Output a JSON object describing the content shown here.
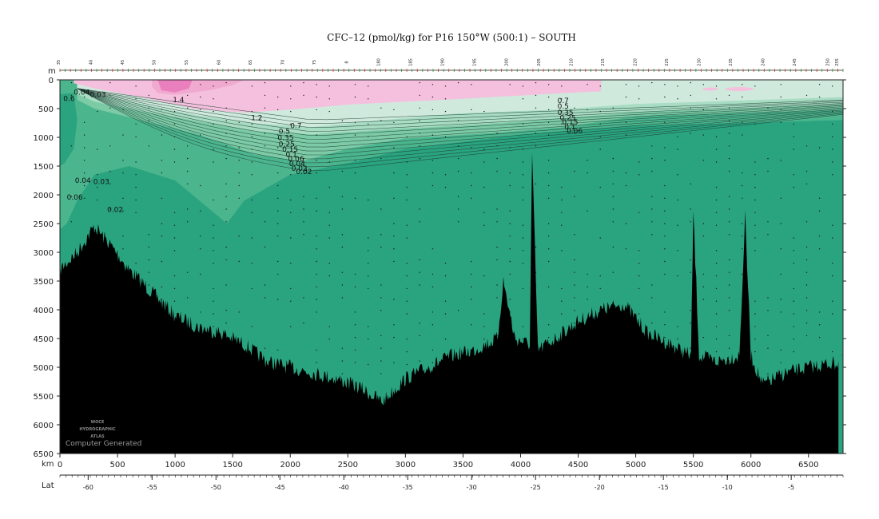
{
  "title": "CFC–12 (pmol/kg) for P16 150°W (500:1) – SOUTH",
  "units_depth": "m",
  "units_distance": "km",
  "units_lat": "Lat",
  "logo": {
    "line1": "WOCE",
    "line2": "HYDROGRAPHIC",
    "line3": "ATLAS"
  },
  "footer_note": "Computer Generated",
  "colors": {
    "deep": "#2aa37f",
    "mid1": "#4bb58e",
    "mid2": "#7ccaa6",
    "pale": "#a8dcc3",
    "palest": "#cfeadd",
    "pink_light": "#f4c0dd",
    "pink": "#f0a9cf",
    "pink_dark": "#ea7fbd",
    "bottom": "#000000",
    "frame": "#222222"
  },
  "chart_data": {
    "type": "section-contour",
    "title": "CFC–12 (pmol/kg) for P16 150°W (500:1) – SOUTH",
    "variable": "CFC-12",
    "units": "pmol/kg",
    "xlabel": "km",
    "ylabel": "m",
    "xlim": [
      0,
      6800
    ],
    "ylim": [
      6500,
      0
    ],
    "x_ticks": [
      0,
      500,
      1000,
      1500,
      2000,
      2500,
      3000,
      3500,
      4000,
      4500,
      5000,
      5500,
      6000,
      6500
    ],
    "y_ticks": [
      0,
      500,
      1000,
      1500,
      2000,
      2500,
      3000,
      3500,
      4000,
      4500,
      5000,
      5500,
      6000,
      6500
    ],
    "lat_ticks": [
      {
        "lat": -60,
        "km": 245
      },
      {
        "lat": -55,
        "km": 800
      },
      {
        "lat": -50,
        "km": 1355
      },
      {
        "lat": -45,
        "km": 1910
      },
      {
        "lat": -40,
        "km": 2465
      },
      {
        "lat": -35,
        "km": 3020
      },
      {
        "lat": -30,
        "km": 3575
      },
      {
        "lat": -25,
        "km": 4130
      },
      {
        "lat": -20,
        "km": 4685
      },
      {
        "lat": -15,
        "km": 5240
      },
      {
        "lat": -10,
        "km": 5795
      },
      {
        "lat": -5,
        "km": 6350
      }
    ],
    "station_labels": [
      {
        "label": "35",
        "km": 0
      },
      {
        "label": "40",
        "km": 280
      },
      {
        "label": "45",
        "km": 555
      },
      {
        "label": "50",
        "km": 830
      },
      {
        "lat": null,
        "label": "55",
        "km": 1110
      },
      {
        "label": "60",
        "km": 1390
      },
      {
        "label": "65",
        "km": 1665
      },
      {
        "label": "70",
        "km": 1945
      },
      {
        "label": "75",
        "km": 2220
      },
      {
        "label": "8",
        "km": 2500
      },
      {
        "label": "180",
        "km": 2780
      },
      {
        "label": "185",
        "km": 3055
      },
      {
        "label": "190",
        "km": 3335
      },
      {
        "label": "195",
        "km": 3610
      },
      {
        "label": "200",
        "km": 3890
      },
      {
        "label": "205",
        "km": 4170
      },
      {
        "label": "210",
        "km": 4450
      },
      {
        "label": "215",
        "km": 4725
      },
      {
        "label": "220",
        "km": 5005
      },
      {
        "label": "225",
        "km": 5280
      },
      {
        "label": "230",
        "km": 5560
      },
      {
        "label": "235",
        "km": 5835
      },
      {
        "label": "240",
        "km": 6115
      },
      {
        "label": "245",
        "km": 6390
      },
      {
        "label": "250",
        "km": 6680
      },
      {
        "label": "255",
        "km": 6760
      }
    ],
    "contour_labels": [
      {
        "text": "0.6",
        "km": 30,
        "m": 370
      },
      {
        "text": "0.04",
        "km": 120,
        "m": 260
      },
      {
        "text": "0.03",
        "km": 260,
        "m": 300
      },
      {
        "text": "1.4",
        "km": 980,
        "m": 390
      },
      {
        "text": "1.2",
        "km": 1660,
        "m": 700
      },
      {
        "text": "0.7",
        "km": 2000,
        "m": 840
      },
      {
        "text": "0.5",
        "km": 1900,
        "m": 940
      },
      {
        "text": "0.35",
        "km": 1890,
        "m": 1050
      },
      {
        "text": "0.25",
        "km": 1900,
        "m": 1160
      },
      {
        "text": "0.15",
        "km": 1930,
        "m": 1250
      },
      {
        "text": "0.1",
        "km": 1960,
        "m": 1340
      },
      {
        "text": "0.06",
        "km": 1980,
        "m": 1420
      },
      {
        "text": "0.04",
        "km": 1990,
        "m": 1500
      },
      {
        "text": "0.03",
        "km": 2010,
        "m": 1580
      },
      {
        "text": "0.02",
        "km": 2050,
        "m": 1640
      },
      {
        "text": "0.04",
        "km": 130,
        "m": 1790
      },
      {
        "text": "0.03",
        "km": 290,
        "m": 1810
      },
      {
        "text": "0.06",
        "km": 60,
        "m": 2080
      },
      {
        "text": "0.02",
        "km": 410,
        "m": 2300
      },
      {
        "text": "0.7",
        "km": 4320,
        "m": 400
      },
      {
        "text": "0.5",
        "km": 4320,
        "m": 500
      },
      {
        "text": "0.35",
        "km": 4320,
        "m": 610
      },
      {
        "text": "0.25",
        "km": 4340,
        "m": 700
      },
      {
        "text": "0.15",
        "km": 4360,
        "m": 780
      },
      {
        "text": "0.1",
        "km": 4380,
        "m": 860
      },
      {
        "text": "0.06",
        "km": 4400,
        "m": 930
      }
    ]
  }
}
